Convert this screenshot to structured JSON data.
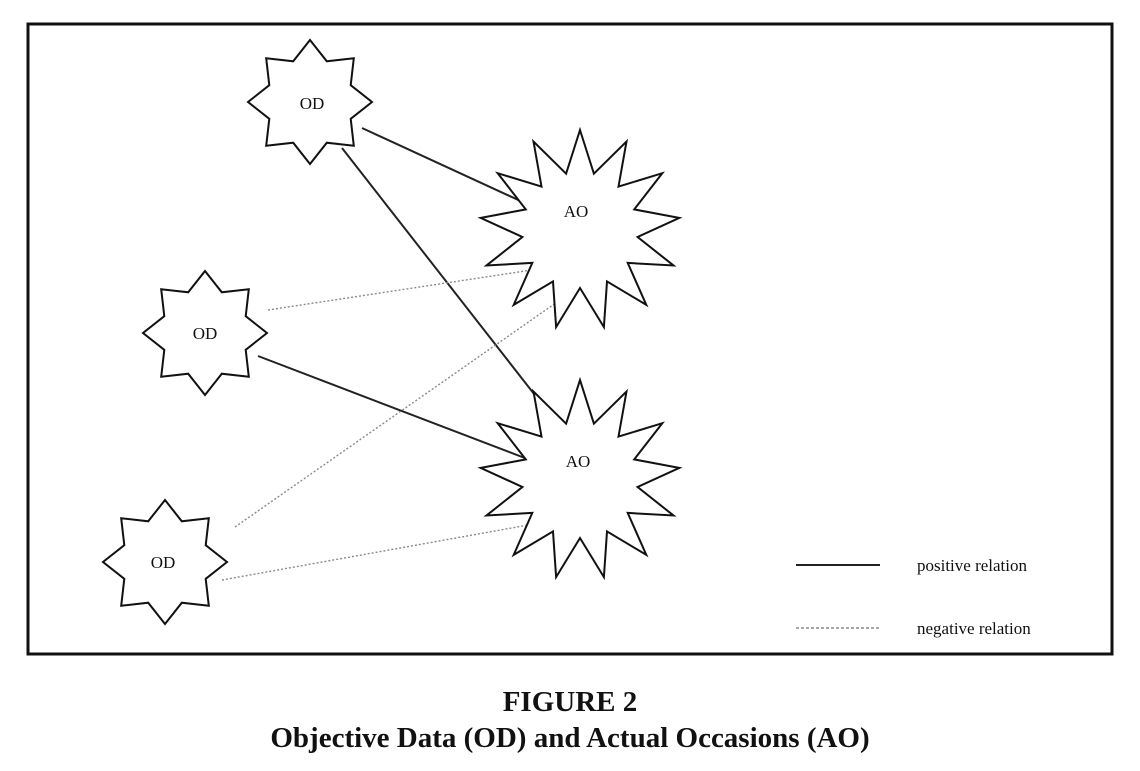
{
  "diagram": {
    "nodes": {
      "od_top": {
        "label": "OD",
        "kind": "OD"
      },
      "od_middle": {
        "label": "OD",
        "kind": "OD"
      },
      "od_bottom": {
        "label": "OD",
        "kind": "OD"
      },
      "ao_top": {
        "label": "AO",
        "kind": "AO"
      },
      "ao_bottom": {
        "label": "AO",
        "kind": "AO"
      }
    },
    "edges": [
      {
        "from": "od_top",
        "to": "ao_top",
        "relation": "positive"
      },
      {
        "from": "od_top",
        "to": "ao_bottom",
        "relation": "positive"
      },
      {
        "from": "od_middle",
        "to": "ao_bottom",
        "relation": "positive"
      },
      {
        "from": "od_middle",
        "to": "ao_top",
        "relation": "negative"
      },
      {
        "from": "od_bottom",
        "to": "ao_top",
        "relation": "negative"
      },
      {
        "from": "od_bottom",
        "to": "ao_bottom",
        "relation": "negative"
      }
    ],
    "legend": {
      "positive_label": "positive relation",
      "negative_label": "negative relation"
    },
    "colors": {
      "positive_line": "#222222",
      "negative_line": "#8a8a8a",
      "shape_stroke": "#111111"
    }
  },
  "caption": {
    "number": "FIGURE 2",
    "title": "Objective Data (OD) and Actual Occasions (AO)"
  }
}
